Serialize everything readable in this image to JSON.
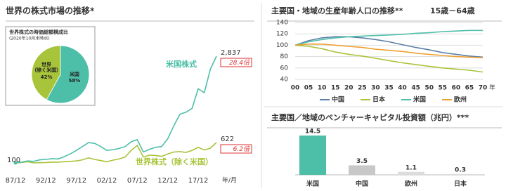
{
  "chart_data": [
    {
      "type": "line",
      "title": "世界の株式市場の推移*",
      "categories": [
        "87/12",
        null,
        null,
        null,
        null,
        "92/12",
        null,
        null,
        null,
        null,
        "97/12",
        null,
        null,
        null,
        null,
        "02/12",
        null,
        null,
        null,
        null,
        "07/12",
        null,
        null,
        null,
        null,
        "12/12",
        null,
        null,
        null,
        null,
        "17/12",
        null,
        null,
        null
      ],
      "xlabel": "年/月",
      "series": [
        {
          "name": "米国株式",
          "color": "#4dbfa8",
          "multiple": "28.4倍",
          "values": [
            100,
            120,
            150,
            140,
            180,
            190,
            210,
            200,
            260,
            330,
            420,
            520,
            620,
            600,
            520,
            420,
            440,
            470,
            520,
            640,
            700,
            380,
            450,
            500,
            520,
            720,
            1050,
            1350,
            1400,
            1500,
            2000,
            1900,
            2500,
            2837
          ],
          "value_labels": [
            null,
            null,
            null,
            null,
            null,
            null,
            null,
            null,
            null,
            null,
            null,
            null,
            null,
            null,
            null,
            null,
            null,
            null,
            null,
            null,
            null,
            null,
            null,
            null,
            null,
            null,
            null,
            null,
            null,
            null,
            null,
            null,
            null,
            "2,837"
          ]
        },
        {
          "name": "世界株式（除く米国）",
          "color": "#a8c43a",
          "multiple": "6.2倍",
          "values": [
            100,
            110,
            130,
            100,
            105,
            110,
            120,
            120,
            130,
            140,
            150,
            180,
            230,
            190,
            160,
            130,
            170,
            200,
            250,
            420,
            550,
            250,
            300,
            290,
            270,
            330,
            380,
            390,
            370,
            420,
            500,
            430,
            480,
            622
          ]
        }
      ]
    },
    {
      "type": "pie",
      "title": "世界株式の時価総額構成比",
      "subtitle": "(2020年10月末時点)",
      "categories": [
        "米国",
        "世界\n（除く米国）"
      ],
      "values": [
        58,
        42
      ],
      "value_labels": [
        "58%",
        "42%"
      ],
      "colors": [
        "#4dbfa8",
        "#a8c43a"
      ]
    },
    {
      "type": "line",
      "title": "主要国・地域の生産年齢人口の推移**",
      "subtitle": "15歳－64歳",
      "x": [
        0,
        5,
        10,
        15,
        20,
        25,
        30,
        35,
        40,
        45,
        50,
        55,
        60,
        65,
        70
      ],
      "xlim": [
        0,
        70
      ],
      "xticks": [
        {
          "value": 0,
          "label": "00"
        },
        {
          "value": 5,
          "label": "05"
        },
        10,
        15,
        20,
        25,
        30,
        35,
        40,
        45,
        50,
        55,
        60,
        65,
        70
      ],
      "xlabel": "年",
      "ylim": [
        40,
        140
      ],
      "yticks": [
        40,
        60,
        80,
        100,
        120,
        140
      ],
      "grid": true,
      "series": [
        {
          "name": "中国",
          "color": "#5b7fa6",
          "values": [
            100,
            108,
            113,
            115,
            115,
            113,
            110,
            106,
            101,
            96,
            92,
            87,
            84,
            81,
            79
          ]
        },
        {
          "name": "日本",
          "color": "#a8c43a",
          "values": [
            100,
            98,
            94,
            88,
            84,
            81,
            77,
            73,
            69,
            66,
            63,
            60,
            58,
            56,
            53
          ]
        },
        {
          "name": "米国",
          "color": "#4dbfa8",
          "values": [
            100,
            106,
            110,
            113,
            115,
            116,
            117,
            118,
            119,
            121,
            122,
            124,
            125,
            126,
            126
          ]
        },
        {
          "name": "欧州",
          "color": "#f0a030",
          "values": [
            100,
            102,
            102,
            100,
            98,
            96,
            93,
            91,
            89,
            86,
            84,
            82,
            80,
            79,
            78
          ]
        }
      ]
    },
    {
      "type": "bar",
      "title": "主要国／地域のベンチャーキャピタル投資額（兆円）***",
      "categories": [
        "米国",
        "中国",
        "欧州",
        "日本"
      ],
      "values": [
        14.5,
        3.5,
        1.1,
        0.3
      ],
      "colors": [
        "#4dbfa8",
        "#c8c8c8",
        "#dcdcdc",
        "#dcdcdc"
      ]
    }
  ]
}
